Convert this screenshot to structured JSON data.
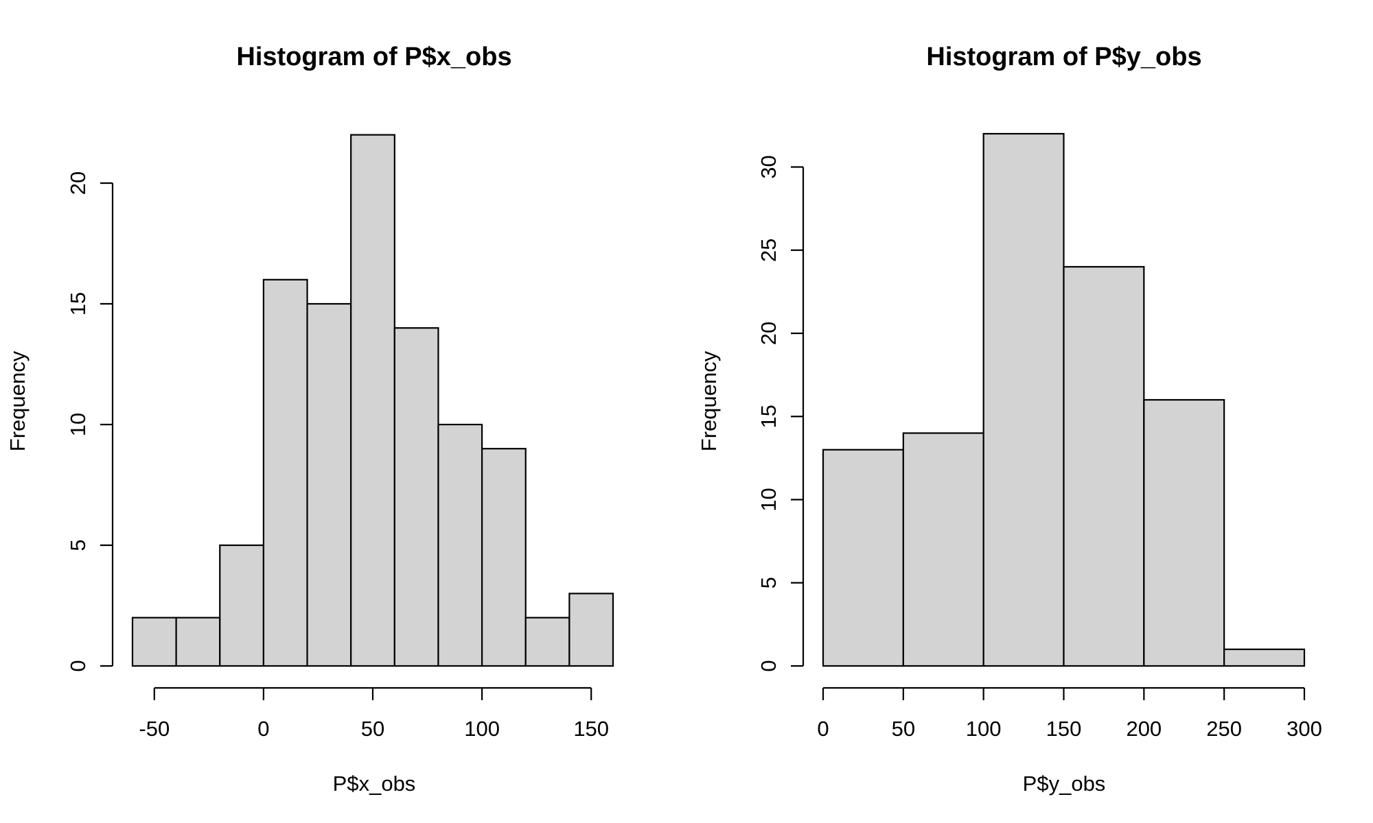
{
  "colors": {
    "bar_fill": "#d3d3d3",
    "bar_stroke": "#000000",
    "background": "#ffffff"
  },
  "chart_data": [
    {
      "type": "bar",
      "subtype": "histogram",
      "title": "Histogram of P$x_obs",
      "xlabel": "P$x_obs",
      "ylabel": "Frequency",
      "bin_edges": [
        -60,
        -40,
        -20,
        0,
        20,
        40,
        60,
        80,
        100,
        120,
        140,
        160
      ],
      "values": [
        2,
        2,
        5,
        16,
        15,
        22,
        14,
        10,
        9,
        2,
        3
      ],
      "xticks": [
        -50,
        0,
        50,
        100,
        150
      ],
      "xtick_labels": [
        "-50",
        "0",
        "50",
        "100",
        "150"
      ],
      "yticks": [
        0,
        5,
        10,
        15,
        20
      ],
      "ytick_labels": [
        "0",
        "5",
        "10",
        "15",
        "20"
      ],
      "xlim": [
        -60,
        160
      ],
      "ylim": [
        0,
        22
      ],
      "grid": false,
      "legend": "none"
    },
    {
      "type": "bar",
      "subtype": "histogram",
      "title": "Histogram of P$y_obs",
      "xlabel": "P$y_obs",
      "ylabel": "Frequency",
      "bin_edges": [
        0,
        50,
        100,
        150,
        200,
        250,
        300
      ],
      "values": [
        13,
        14,
        32,
        24,
        16,
        1
      ],
      "xticks": [
        0,
        50,
        100,
        150,
        200,
        250,
        300
      ],
      "xtick_labels": [
        "0",
        "50",
        "100",
        "150",
        "200",
        "250",
        "300"
      ],
      "yticks": [
        0,
        5,
        10,
        15,
        20,
        25,
        30
      ],
      "ytick_labels": [
        "0",
        "5",
        "10",
        "15",
        "20",
        "25",
        "30"
      ],
      "xlim": [
        0,
        300
      ],
      "ylim": [
        0,
        32
      ],
      "grid": false,
      "legend": "none"
    }
  ]
}
